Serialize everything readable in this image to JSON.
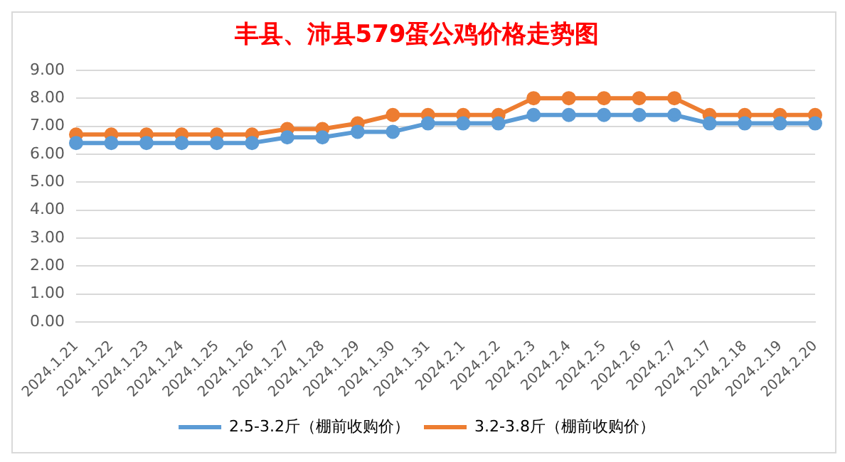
{
  "chart_data": {
    "type": "line",
    "title": "丰县、沛县579蛋公鸡价格走势图",
    "categories": [
      "2024.1.21",
      "2024.1.22",
      "2024.1.23",
      "2024.1.24",
      "2024.1.25",
      "2024.1.26",
      "2024.1.27",
      "2024.1.28",
      "2024.1.29",
      "2024.1.30",
      "2024.1.31",
      "2024.2.1",
      "2024.2.2",
      "2024.2.3",
      "2024.2.4",
      "2024.2.5",
      "2024.2.6",
      "2024.2.7",
      "2024.2.17",
      "2024.2.18",
      "2024.2.19",
      "2024.2.20"
    ],
    "series": [
      {
        "name": "2.5-3.2斤（棚前收购价）",
        "color": "#5b9bd5",
        "values": [
          6.4,
          6.4,
          6.4,
          6.4,
          6.4,
          6.4,
          6.6,
          6.6,
          6.8,
          6.8,
          7.1,
          7.1,
          7.1,
          7.4,
          7.4,
          7.4,
          7.4,
          7.4,
          7.1,
          7.1,
          7.1,
          7.1
        ]
      },
      {
        "name": "3.2-3.8斤（棚前收购价）",
        "color": "#ed7d31",
        "values": [
          6.7,
          6.7,
          6.7,
          6.7,
          6.7,
          6.7,
          6.9,
          6.9,
          7.1,
          7.4,
          7.4,
          7.4,
          7.4,
          8.0,
          8.0,
          8.0,
          8.0,
          8.0,
          7.4,
          7.4,
          7.4,
          7.4
        ]
      }
    ],
    "ylim": [
      0,
      9
    ],
    "yticks": [
      {
        "value": 0,
        "label": "0.00"
      },
      {
        "value": 1,
        "label": "1.00"
      },
      {
        "value": 2,
        "label": "2.00"
      },
      {
        "value": 3,
        "label": "3.00"
      },
      {
        "value": 4,
        "label": "4.00"
      },
      {
        "value": 5,
        "label": "5.00"
      },
      {
        "value": 6,
        "label": "6.00"
      },
      {
        "value": 7,
        "label": "7.00"
      },
      {
        "value": 8,
        "label": "8.00"
      },
      {
        "value": 9,
        "label": "9.00"
      }
    ],
    "grid": "y",
    "legend": "bottom",
    "marker": "circle",
    "line_style": "solid"
  }
}
